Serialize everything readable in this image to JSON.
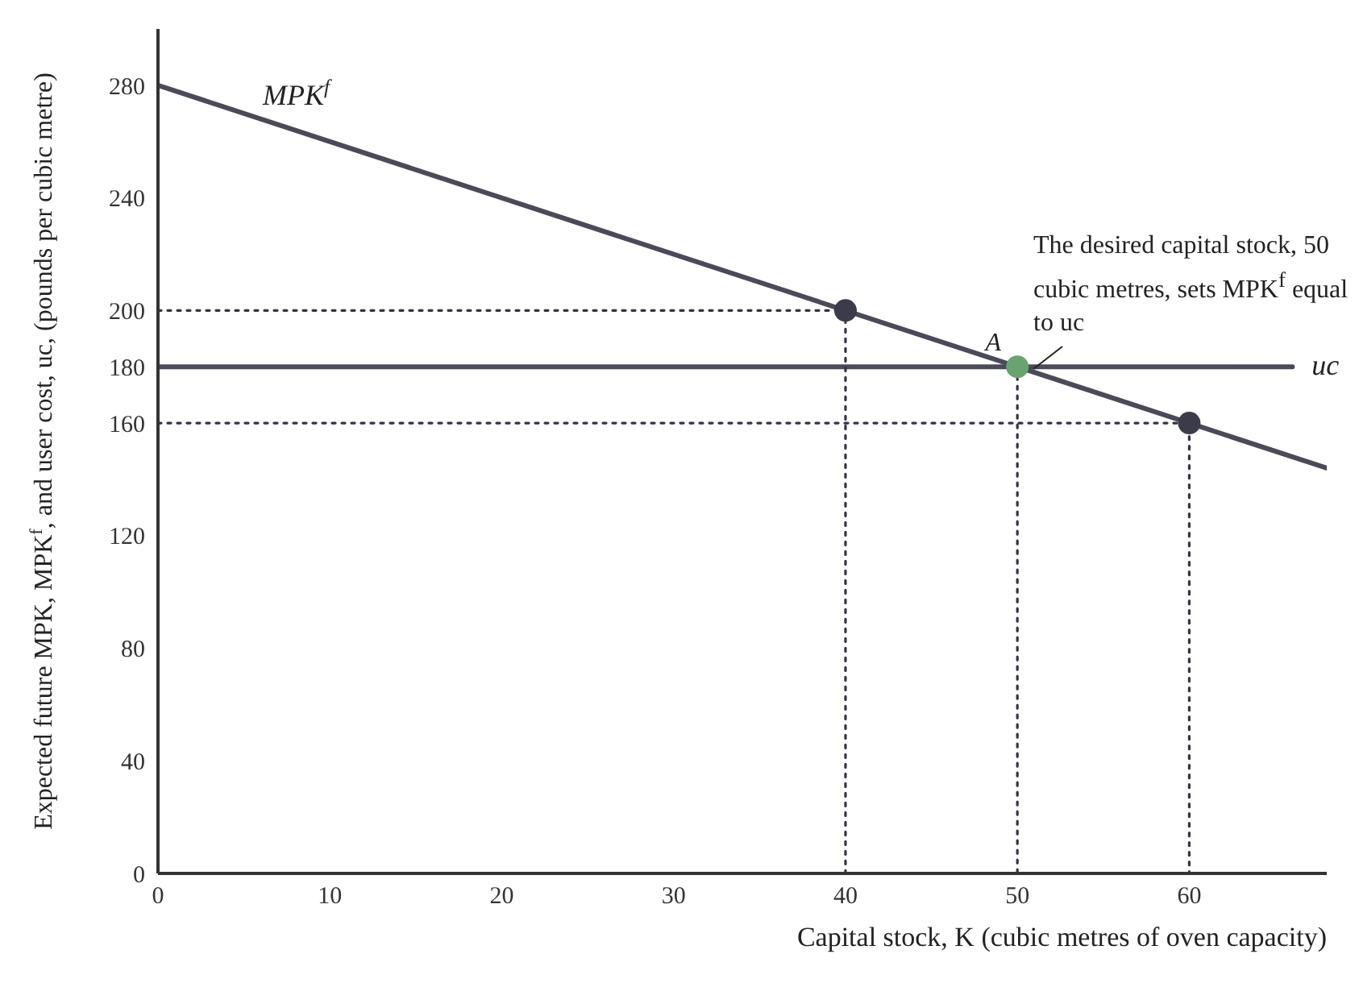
{
  "chart_data": {
    "type": "line",
    "xlabel": "Capital stock, K (cubic metres of oven capacity)",
    "ylabel": "Expected future MPK, MPK$^{f}$, and user cost, uc, (pounds per cubic metre)",
    "xlim": [
      0,
      68
    ],
    "xticks": [
      0,
      10,
      20,
      30,
      40,
      50,
      60
    ],
    "ylim": [
      0,
      300
    ],
    "yticks": [
      0,
      40,
      80,
      120,
      160,
      180,
      200,
      240,
      280
    ],
    "grid": false,
    "legend": false,
    "series": [
      {
        "name": "MPK$^{f}$",
        "color": "#4a4a58",
        "x": [
          0,
          68
        ],
        "values": [
          280,
          144
        ]
      },
      {
        "name": "uc",
        "color": "#4a4a58",
        "x": [
          0,
          66
        ],
        "values": [
          180,
          180
        ]
      },
      {
        "line_style": "dotted",
        "color": "#333344",
        "x": [
          0,
          40,
          40
        ],
        "values": [
          200,
          200,
          0
        ]
      },
      {
        "line_style": "dotted",
        "color": "#333344",
        "x": [
          0,
          60,
          60
        ],
        "values": [
          160,
          160,
          0
        ]
      },
      {
        "line_style": "dotted",
        "color": "#333344",
        "x": [
          50,
          50
        ],
        "values": [
          180,
          0
        ]
      },
      {
        "type": "scatter",
        "marker": "circle",
        "colors": [
          "#3b3b4a",
          "#6aa36f",
          "#3b3b4a"
        ],
        "x": [
          40,
          50,
          60
        ],
        "values": [
          200,
          180,
          160
        ]
      }
    ],
    "annotations": [
      {
        "text": "A",
        "x": 50,
        "y": 180
      },
      "The desired capital stock, 50 cubic metres, sets MPK$^{f}$ equal to uc"
    ]
  }
}
